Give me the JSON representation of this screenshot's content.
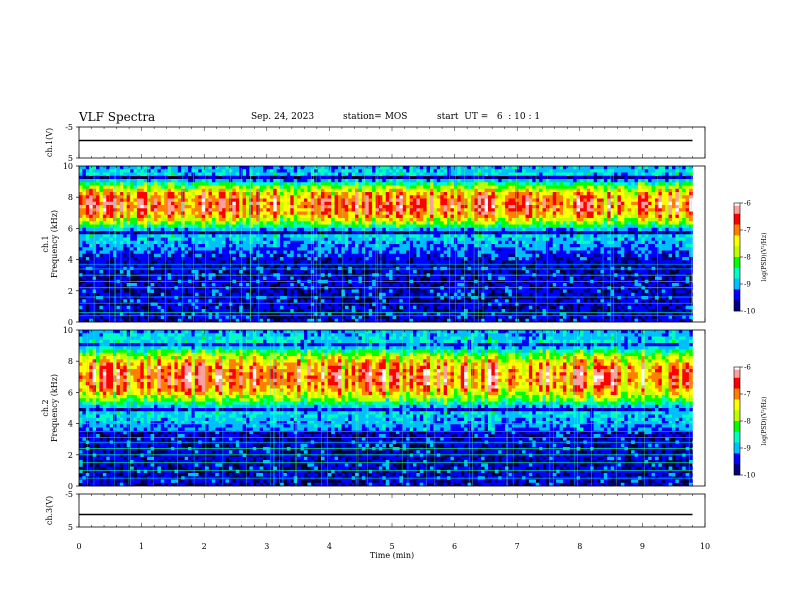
{
  "header": {
    "title": "VLF Spectra",
    "date": "Sep. 24, 2023",
    "station": "station= MOS",
    "start": "start  UT =   6  : 10 : 1"
  },
  "colors": {
    "colormap": [
      "#00007f",
      "#0000ff",
      "#00bfff",
      "#00ffbf",
      "#00ff00",
      "#bfff00",
      "#ffff00",
      "#ff7f00",
      "#ff0000",
      "#ff9fa0",
      "#ffffff"
    ],
    "background": "#000030",
    "trace": "#000000"
  },
  "chart_data": [
    {
      "type": "line",
      "id": "ch1-waveform",
      "ylabel": "ch.1(V)",
      "ylim": [
        -5,
        5
      ],
      "yticks": [
        "5",
        "-5"
      ],
      "xlim": [
        0,
        10
      ],
      "series": [
        {
          "x": [
            0,
            9.8
          ],
          "y": [
            0,
            0
          ]
        }
      ]
    },
    {
      "type": "heatmap",
      "id": "ch1-spectrogram",
      "ylabel": [
        "ch.1",
        "Frequency (kHz)"
      ],
      "ylim": [
        0,
        10
      ],
      "yticks": [
        "0",
        "2",
        "4",
        "6",
        "8",
        "10"
      ],
      "xlim": [
        0,
        9.8
      ],
      "band_center_khz": 7.5,
      "band_halfwidth_khz": 1.8,
      "colorbar": {
        "label": "log(PSD)(V²/Hz)",
        "range": [
          -10,
          -6
        ],
        "ticks": [
          "-6",
          "-7",
          "-8",
          "-9",
          "-10"
        ]
      }
    },
    {
      "type": "heatmap",
      "id": "ch2-spectrogram",
      "ylabel": [
        "ch.2",
        "Frequency (kHz)"
      ],
      "ylim": [
        0,
        10
      ],
      "yticks": [
        "0",
        "2",
        "4",
        "6",
        "8",
        "10"
      ],
      "xlim": [
        0,
        9.8
      ],
      "band_center_khz": 7.0,
      "band_halfwidth_khz": 2.2,
      "colorbar": {
        "label": "log(PSD)(V²/Hz)",
        "range": [
          -10,
          -6
        ],
        "ticks": [
          "-6",
          "-7",
          "-8",
          "-9",
          "-10"
        ]
      }
    },
    {
      "type": "line",
      "id": "ch3-waveform",
      "ylabel": "ch.3(V)",
      "ylim": [
        -5,
        5
      ],
      "yticks": [
        "5",
        "-5"
      ],
      "xlim": [
        0,
        10
      ],
      "series": [
        {
          "x": [
            0,
            9.8
          ],
          "y": [
            0,
            0
          ]
        }
      ]
    }
  ],
  "x_axis": {
    "label": "Time  (min)",
    "ticks": [
      "0",
      "1",
      "2",
      "3",
      "4",
      "5",
      "6",
      "7",
      "8",
      "9",
      "10"
    ]
  }
}
